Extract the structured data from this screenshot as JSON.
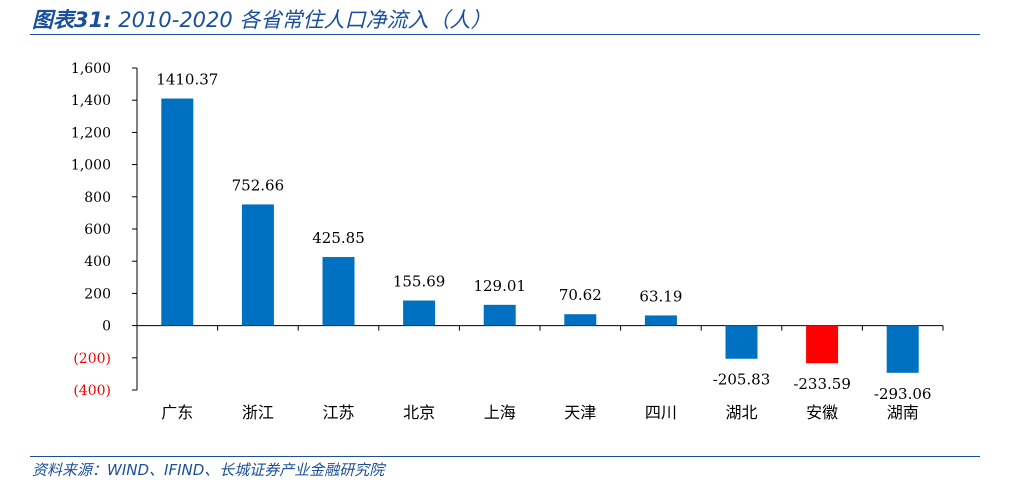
{
  "title": {
    "prefix": "图表31:",
    "main": " 2010-2020 各省常住人口净流入（人）"
  },
  "source": "资料来源：WIND、IFIND、长城证券产业金融研究院",
  "colors": {
    "bar": "#0070c0",
    "highlight": "#ff0000",
    "negative_tick": "#ff0000",
    "rule": "#1a4f9c"
  },
  "chart_data": {
    "type": "bar",
    "title": "图表31: 2010-2020 各省常住人口净流入（人）",
    "xlabel": "",
    "ylabel": "",
    "ylim": [
      -400,
      1600
    ],
    "yticks": [
      -400,
      -200,
      0,
      200,
      400,
      600,
      800,
      1000,
      1200,
      1400,
      1600
    ],
    "ytick_labels": [
      "(400)",
      "(200)",
      "0",
      "200",
      "400",
      "600",
      "800",
      "1,000",
      "1,200",
      "1,400",
      "1,600"
    ],
    "categories": [
      "广东",
      "浙江",
      "江苏",
      "北京",
      "上海",
      "天津",
      "四川",
      "湖北",
      "安徽",
      "湖南"
    ],
    "values": [
      1410.37,
      752.66,
      425.85,
      155.69,
      129.01,
      70.62,
      63.19,
      -205.83,
      -233.59,
      -293.06
    ],
    "data_labels": [
      "1410.37",
      "752.66",
      "425.85",
      "155.69",
      "129.01",
      "70.62",
      "63.19",
      "-205.83",
      "-233.59",
      "-293.06"
    ],
    "highlight_category": "安徽",
    "grid": false,
    "legend": "none"
  }
}
